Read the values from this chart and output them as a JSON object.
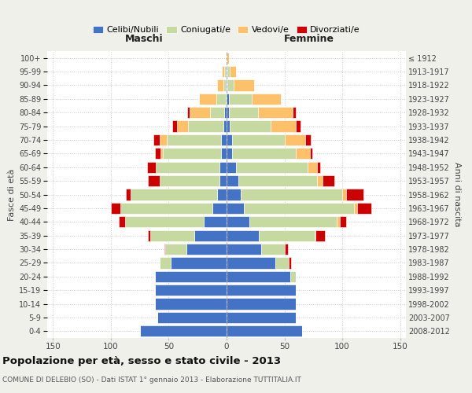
{
  "age_groups_bottom_to_top": [
    "0-4",
    "5-9",
    "10-14",
    "15-19",
    "20-24",
    "25-29",
    "30-34",
    "35-39",
    "40-44",
    "45-49",
    "50-54",
    "55-59",
    "60-64",
    "65-69",
    "70-74",
    "75-79",
    "80-84",
    "85-89",
    "90-94",
    "95-99",
    "100+"
  ],
  "birth_years_bottom_to_top": [
    "2008-2012",
    "2003-2007",
    "1998-2002",
    "1993-1997",
    "1988-1992",
    "1983-1987",
    "1978-1982",
    "1973-1977",
    "1968-1972",
    "1963-1967",
    "1958-1962",
    "1953-1957",
    "1948-1952",
    "1943-1947",
    "1938-1942",
    "1933-1937",
    "1928-1932",
    "1923-1927",
    "1918-1922",
    "1913-1917",
    "≤ 1912"
  ],
  "maschi": {
    "celibi": [
      75,
      60,
      62,
      62,
      62,
      48,
      35,
      28,
      20,
      12,
      8,
      6,
      6,
      5,
      5,
      3,
      2,
      1,
      1,
      1,
      0
    ],
    "coniugati": [
      0,
      0,
      0,
      0,
      0,
      10,
      18,
      38,
      68,
      80,
      75,
      52,
      55,
      50,
      47,
      30,
      12,
      8,
      2,
      1,
      0
    ],
    "vedovi": [
      0,
      0,
      0,
      0,
      0,
      0,
      0,
      0,
      0,
      0,
      0,
      0,
      0,
      2,
      6,
      10,
      18,
      15,
      5,
      2,
      0
    ],
    "divorziati": [
      0,
      0,
      0,
      0,
      0,
      0,
      1,
      2,
      5,
      8,
      4,
      10,
      8,
      5,
      5,
      4,
      2,
      0,
      0,
      0,
      0
    ]
  },
  "femmine": {
    "nubili": [
      65,
      60,
      60,
      60,
      55,
      42,
      30,
      28,
      20,
      15,
      12,
      10,
      8,
      5,
      5,
      3,
      2,
      2,
      1,
      1,
      0
    ],
    "coniugate": [
      0,
      0,
      0,
      0,
      5,
      12,
      20,
      48,
      75,
      95,
      88,
      68,
      62,
      55,
      45,
      35,
      25,
      20,
      5,
      2,
      0
    ],
    "vedove": [
      0,
      0,
      0,
      0,
      0,
      0,
      0,
      1,
      3,
      3,
      3,
      5,
      8,
      12,
      18,
      22,
      30,
      25,
      18,
      5,
      2
    ],
    "divorziate": [
      0,
      0,
      0,
      0,
      0,
      2,
      3,
      8,
      5,
      12,
      15,
      10,
      3,
      2,
      5,
      4,
      3,
      0,
      0,
      0,
      0
    ]
  },
  "colors": {
    "celibi": "#4472c4",
    "coniugati": "#c5d9a0",
    "vedovi": "#ffc06a",
    "divorziati": "#cc0000"
  },
  "xlim": 155,
  "title": "Popolazione per età, sesso e stato civile - 2013",
  "subtitle": "COMUNE DI DELEBIO (SO) - Dati ISTAT 1° gennaio 2013 - Elaborazione TUTTITALIA.IT",
  "bg_color": "#f0f0ea",
  "plot_bg": "#ffffff"
}
